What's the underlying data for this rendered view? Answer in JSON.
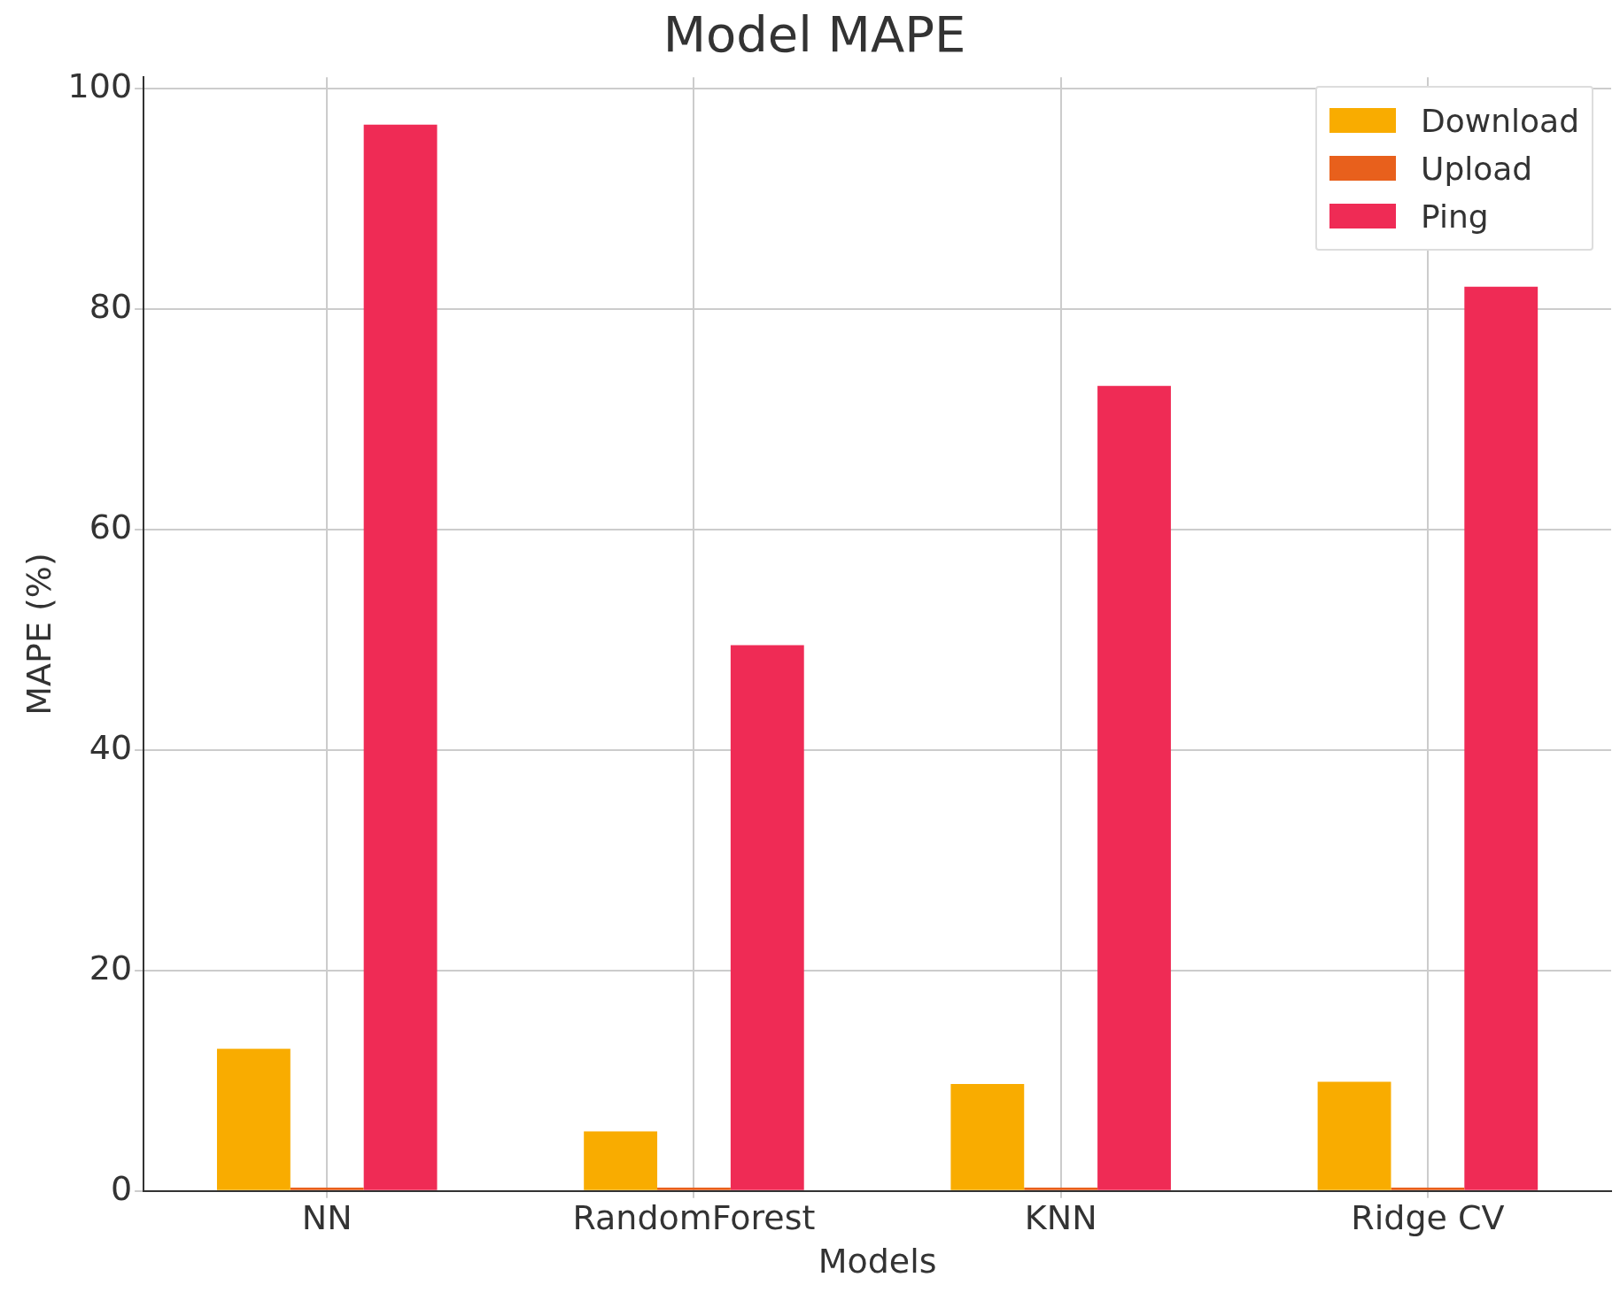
{
  "chart_data": {
    "type": "bar",
    "title": "Model MAPE",
    "xlabel": "Models",
    "ylabel": "MAPE (%)",
    "categories": [
      "NN",
      "RandomForest",
      "KNN",
      "Ridge CV"
    ],
    "series": [
      {
        "name": "Download",
        "color": "#f9ac00",
        "values": [
          12.9,
          5.4,
          9.7,
          9.9
        ]
      },
      {
        "name": "Upload",
        "color": "#e8601c",
        "values": [
          0.3,
          0.3,
          0.3,
          0.3
        ]
      },
      {
        "name": "Ping",
        "color": "#ef2b55",
        "values": [
          96.7,
          49.5,
          73.0,
          82.0
        ]
      }
    ],
    "ylim": [
      0,
      101
    ],
    "yticks": [
      0,
      20,
      40,
      60,
      80,
      100
    ],
    "grid": true,
    "legend": "top right"
  }
}
